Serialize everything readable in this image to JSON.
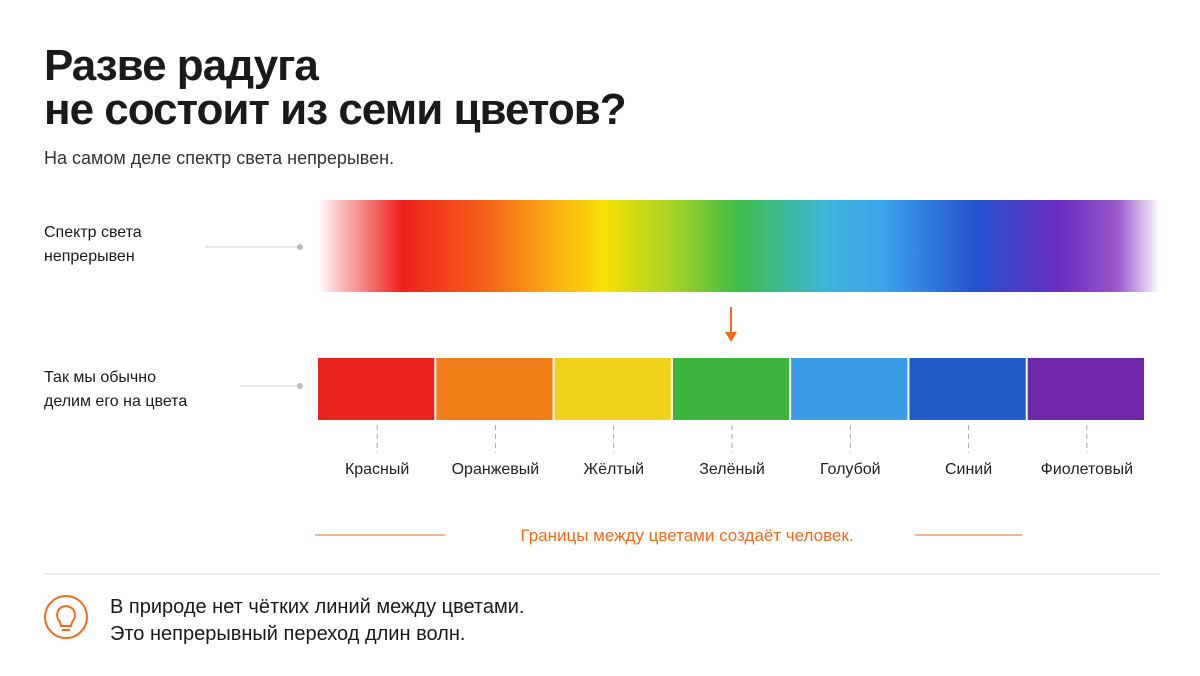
{
  "header": {
    "title": [
      "Разве радуга",
      "не состоит из семи цветов?"
    ],
    "subtitle": "На самом деле спектр света непрерывен."
  },
  "rows": [
    {
      "label": [
        "Спектр света",
        "непрерывен"
      ]
    },
    {
      "label": [
        "Так мы обычно",
        "делим его на цвета"
      ]
    }
  ],
  "segments": [
    {
      "label": "Красный",
      "color": "#ea241c"
    },
    {
      "label": "Оранжевый",
      "color": "#f27e1a"
    },
    {
      "label": "Жёлтый",
      "color": "#f1d21a"
    },
    {
      "label": "Зелёный",
      "color": "#3db43c"
    },
    {
      "label": "Голубой",
      "color": "#3a9ee6"
    },
    {
      "label": "Синий",
      "color": "#1e5cc8"
    },
    {
      "label": "Фиолетовый",
      "color": "#7027a8"
    }
  ],
  "note": "Границы между цветами создаёт человек.",
  "footer": [
    "В природе нет чётких линий между цветами.",
    "Это непрерывный переход длин волн."
  ]
}
